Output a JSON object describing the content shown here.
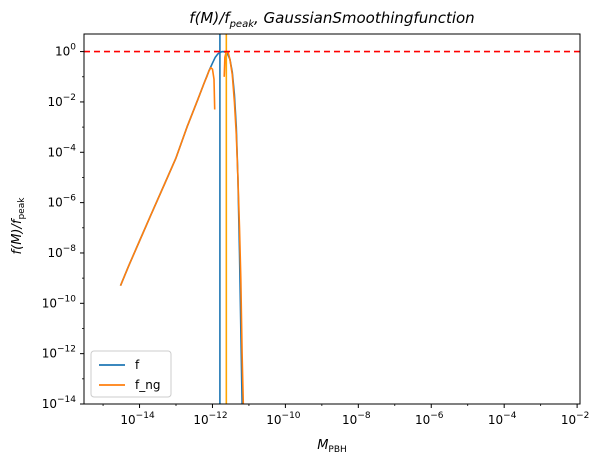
{
  "chart_data": {
    "type": "line",
    "title_main": "f(M)/f",
    "title_sub": "peak",
    "title_rest": ", GaussianSmoothingfunction",
    "xlabel_main": "M",
    "xlabel_sub": "PBH",
    "ylabel_main": "f(M)/f",
    "ylabel_sub": "peak",
    "xscale": "log",
    "yscale": "log",
    "xlim": [
      3e-16,
      0.012
    ],
    "ylim": [
      1e-14,
      5
    ],
    "grid": false,
    "legend_position": "lower-left",
    "x_ticks": [
      {
        "value": 1e-14,
        "base": "10",
        "exp": "−14"
      },
      {
        "value": 1e-12,
        "base": "10",
        "exp": "−12"
      },
      {
        "value": 1e-10,
        "base": "10",
        "exp": "−10"
      },
      {
        "value": 1e-08,
        "base": "10",
        "exp": "−8"
      },
      {
        "value": 1e-06,
        "base": "10",
        "exp": "−6"
      },
      {
        "value": 0.0001,
        "base": "10",
        "exp": "−4"
      },
      {
        "value": 0.01,
        "base": "10",
        "exp": "−2"
      }
    ],
    "y_ticks": [
      {
        "value": 1,
        "base": "10",
        "exp": "0"
      },
      {
        "value": 0.01,
        "base": "10",
        "exp": "−2"
      },
      {
        "value": 0.0001,
        "base": "10",
        "exp": "−4"
      },
      {
        "value": 1e-06,
        "base": "10",
        "exp": "−6"
      },
      {
        "value": 1e-08,
        "base": "10",
        "exp": "−8"
      },
      {
        "value": 1e-10,
        "base": "10",
        "exp": "−10"
      },
      {
        "value": 1e-12,
        "base": "10",
        "exp": "−12"
      },
      {
        "value": 1e-14,
        "base": "10",
        "exp": "−14"
      }
    ],
    "series": [
      {
        "name": "f",
        "color": "#1f77b4",
        "x": [
          3e-15,
          5e-15,
          1e-14,
          2e-14,
          5e-14,
          1e-13,
          2e-13,
          4e-13,
          6e-13,
          8e-13,
          1e-12,
          1.2e-12,
          1.4e-12,
          1.6e-12,
          1.8e-12,
          2e-12,
          2.3e-12,
          2.6e-12,
          3e-12,
          3.5e-12,
          4e-12,
          4.5e-12,
          5e-12,
          5.5e-12,
          6e-12,
          6.5e-12
        ],
        "y": [
          5e-10,
          3e-09,
          3e-08,
          3e-07,
          6e-06,
          6e-05,
          0.001,
          0.013,
          0.06,
          0.17,
          0.35,
          0.6,
          0.8,
          0.93,
          0.99,
          1.0,
          0.95,
          0.8,
          0.5,
          0.15,
          0.02,
          0.001,
          1e-05,
          1e-08,
          1e-11,
          1e-14
        ]
      },
      {
        "name": "f_ng",
        "color": "#ff7f0e",
        "x_branch1": [
          3e-15,
          5e-15,
          1e-14,
          2e-14,
          5e-14,
          1e-13,
          2e-13,
          4e-13,
          6e-13,
          7e-13,
          8e-13,
          9e-13,
          1e-12,
          1.1e-12,
          1.15e-12
        ],
        "y_branch1": [
          5e-10,
          3e-09,
          3e-08,
          3e-07,
          6e-06,
          6e-05,
          0.001,
          0.013,
          0.06,
          0.1,
          0.17,
          0.23,
          0.2,
          0.08,
          0.005
        ],
        "x_branch2": [
          2.1e-12,
          2.2e-12,
          2.4e-12,
          2.7e-12,
          3e-12,
          3.5e-12,
          4e-12,
          4.5e-12,
          5e-12,
          5.5e-12,
          6e-12,
          6.5e-12,
          7e-12
        ],
        "y_branch2": [
          0.1,
          0.6,
          1.0,
          0.9,
          0.5,
          0.12,
          0.01,
          0.0005,
          1e-05,
          1e-07,
          1e-09,
          1e-12,
          1e-14
        ]
      }
    ],
    "vlines": [
      {
        "x": 1.6e-12,
        "color": "#1f77b4"
      },
      {
        "x": 2.4e-12,
        "color": "orange"
      }
    ],
    "hlines": [
      {
        "y": 1,
        "color": "red",
        "style": "dashed"
      }
    ]
  }
}
